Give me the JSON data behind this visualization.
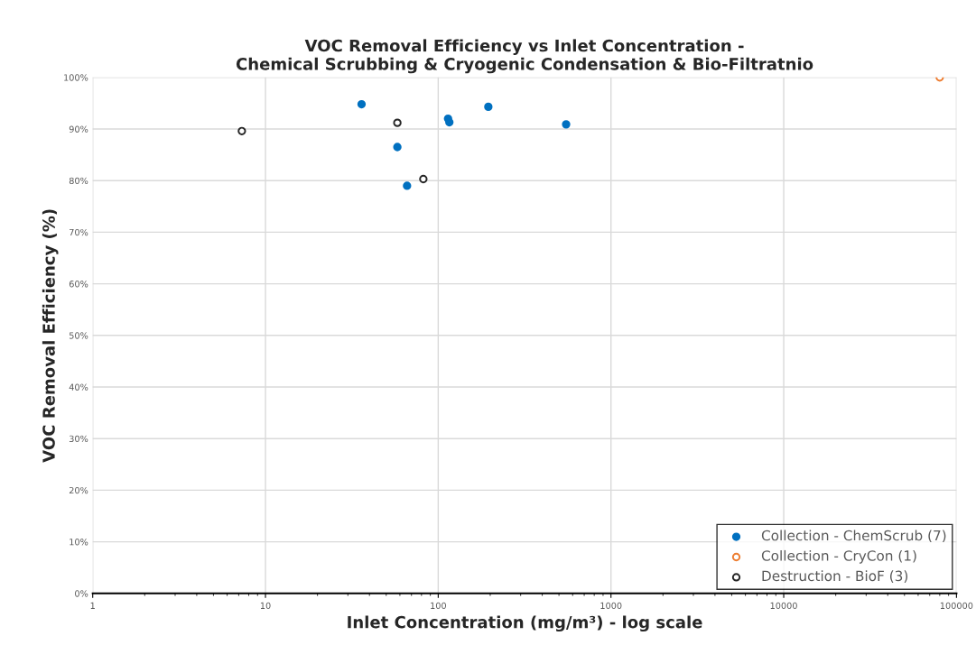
{
  "chart_data": {
    "type": "scatter",
    "title": "VOC Removal Efficiency vs Inlet Concentration -\nChemical Scrubbing & Cryogenic Condensation & Bio-Filtratnio",
    "xlabel": "Inlet Concentration (mg/m³) - log scale",
    "ylabel": "VOC Removal Efficiency (%)",
    "log": "x",
    "grid": true,
    "legend": "bottom right",
    "marker": "circle",
    "xlim": [
      1,
      100000
    ],
    "xticks": [
      1,
      10,
      100,
      1000,
      10000,
      100000
    ],
    "ylim": [
      0,
      100
    ],
    "yticks": [
      {
        "value": 0,
        "label": "0%"
      },
      {
        "value": 10,
        "label": "10%"
      },
      {
        "value": 20,
        "label": "20%"
      },
      {
        "value": 30,
        "label": "30%"
      },
      {
        "value": 40,
        "label": "40%"
      },
      {
        "value": 50,
        "label": "50%"
      },
      {
        "value": 60,
        "label": "60%"
      },
      {
        "value": 70,
        "label": "70%"
      },
      {
        "value": 80,
        "label": "80%"
      },
      {
        "value": 90,
        "label": "90%"
      },
      {
        "value": 100,
        "label": "100%"
      }
    ],
    "series": [
      {
        "name": "Collection - ChemScrub (7)",
        "color": "#0070c0",
        "x": [
          36,
          58,
          66,
          114,
          116,
          195,
          550
        ],
        "values": [
          94.8,
          86.5,
          79.0,
          92.0,
          91.3,
          94.3,
          90.9
        ]
      },
      {
        "name": "Collection - CryCon (1)",
        "color": "#ed7d31",
        "x": [
          80000
        ],
        "values": [
          100
        ]
      },
      {
        "name": "Destruction - BioF (3)",
        "color": "#262626",
        "x": [
          7.3,
          58,
          82
        ],
        "values": [
          89.6,
          91.2,
          80.3
        ]
      }
    ]
  }
}
